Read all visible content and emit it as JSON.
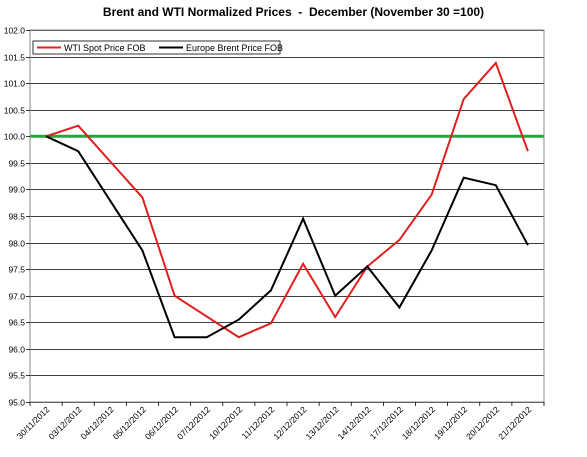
{
  "chart_data": {
    "type": "line",
    "title": "Brent and WTI Normalized Prices  -  December (November 30 =100)",
    "xlabel": "",
    "ylabel": "",
    "ylim": [
      95.0,
      102.0
    ],
    "ytick_step": 0.5,
    "yticks": [
      "95.0",
      "95.5",
      "96.0",
      "96.5",
      "97.0",
      "97.5",
      "98.0",
      "98.5",
      "99.0",
      "99.5",
      "100.0",
      "100.5",
      "101.0",
      "101.5",
      "102.0"
    ],
    "grid": "horizontal",
    "legend_position": "top-left",
    "categories": [
      "30/11/2012",
      "03/12/2012",
      "04/12/2012",
      "05/12/2012",
      "06/12/2012",
      "07/12/2012",
      "10/12/2012",
      "11/12/2012",
      "12/12/2012",
      "13/12/2012",
      "14/12/2012",
      "17/12/2012",
      "18/12/2012",
      "19/12/2012",
      "20/12/2012",
      "21/12/2012"
    ],
    "x_positions": [
      0,
      1,
      2,
      3,
      4,
      5,
      6,
      7,
      8,
      9,
      10,
      11,
      12,
      13,
      14,
      15
    ],
    "series": [
      {
        "name": "WTI Spot Price FOB",
        "color": "#e01f1f",
        "x": [
          0,
          1,
          3,
          4,
          6,
          7,
          8,
          9,
          10,
          11,
          12,
          13,
          14,
          15
        ],
        "values": [
          100.0,
          100.2,
          98.85,
          97.0,
          96.22,
          96.48,
          97.6,
          96.6,
          97.55,
          98.05,
          98.9,
          100.7,
          101.38,
          99.72
        ]
      },
      {
        "name": "Europe Brent Price FOB",
        "color": "#000000",
        "x": [
          0,
          1,
          3,
          4,
          5,
          6,
          7,
          8,
          9,
          10,
          11,
          12,
          13,
          14,
          15
        ],
        "values": [
          100.0,
          99.72,
          97.85,
          96.22,
          96.22,
          96.55,
          97.1,
          98.45,
          97.0,
          97.55,
          96.78,
          97.85,
          99.22,
          99.08,
          97.95
        ]
      }
    ],
    "reference_line": {
      "value": 100.0,
      "color": "#22a83a"
    }
  }
}
